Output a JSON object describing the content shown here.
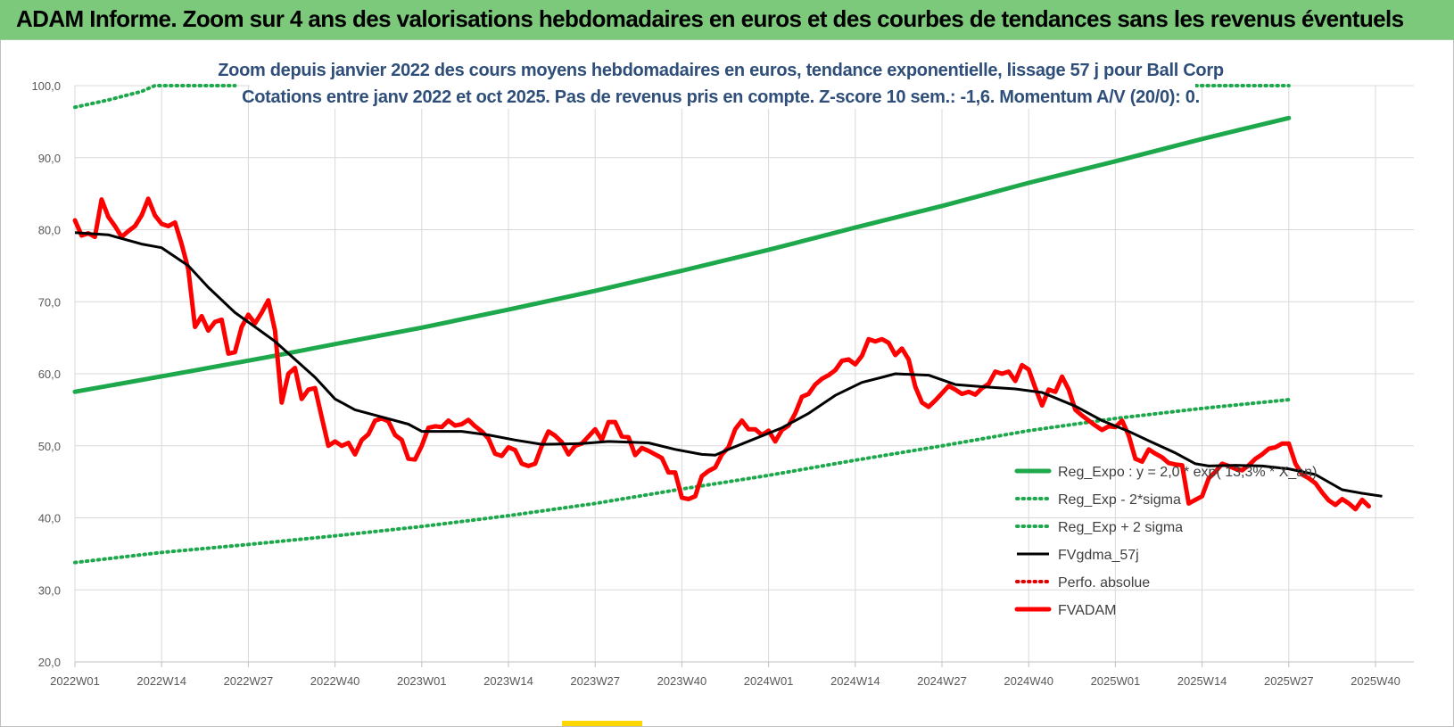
{
  "header": {
    "title": "ADAM Informe. Zoom sur 4 ans des valorisations hebdomadaires en euros et des courbes de tendances sans les revenus éventuels"
  },
  "chart_data": {
    "type": "line",
    "title_line1": "Zoom depuis janvier 2022 des cours moyens hebdomadaires en euros, tendance exponentielle, lissage 57 j pour Ball Corp",
    "title_line2": "Cotations entre janv 2022 et oct 2025. Pas de revenus pris en compte. Z-score 10 sem.: -1,6.  Momentum A/V (20/0): 0.",
    "xlabel": "",
    "ylabel": "",
    "ylim": [
      20,
      100
    ],
    "y_ticks": [
      "20,0",
      "30,0",
      "40,0",
      "50,0",
      "60,0",
      "70,0",
      "80,0",
      "90,0",
      "100,0"
    ],
    "x_ticks": [
      "2022W01",
      "2022W14",
      "2022W27",
      "2022W40",
      "2023W01",
      "2023W14",
      "2023W27",
      "2023W40",
      "2024W01",
      "2024W14",
      "2024W27",
      "2024W40",
      "2025W01",
      "2025W14",
      "2025W27",
      "2025W40"
    ],
    "grid": true,
    "legend_position": "bottom-right",
    "colors": {
      "trend": "#1ea84c",
      "bands": "#1ea84c",
      "smooth": "#000000",
      "perfo": "#e00000",
      "adam": "#ff0000"
    },
    "series": [
      {
        "name": "Reg_Expo : y = 2,0 * exp( 13,3% * X_an)",
        "style": "solid-thick",
        "color": "#1ea84c",
        "points": [
          [
            0,
            57.5
          ],
          [
            17,
            60.3
          ],
          [
            30,
            62.5
          ],
          [
            40,
            64.3
          ],
          [
            52,
            66.4
          ],
          [
            65,
            68.9
          ],
          [
            78,
            71.5
          ],
          [
            91,
            74.3
          ],
          [
            104,
            77.2
          ],
          [
            117,
            80.3
          ],
          [
            130,
            83.3
          ],
          [
            143,
            86.5
          ],
          [
            156,
            89.5
          ],
          [
            169,
            92.6
          ],
          [
            182,
            95.5
          ]
        ]
      },
      {
        "name": "Reg_Exp - 2*sigma",
        "style": "dotted",
        "color": "#1ea84c",
        "points": [
          [
            0,
            33.8
          ],
          [
            13,
            35.2
          ],
          [
            26,
            36.3
          ],
          [
            39,
            37.5
          ],
          [
            52,
            38.8
          ],
          [
            65,
            40.3
          ],
          [
            78,
            42.0
          ],
          [
            91,
            44.0
          ],
          [
            104,
            45.9
          ],
          [
            117,
            48.0
          ],
          [
            130,
            50.0
          ],
          [
            143,
            52.1
          ],
          [
            156,
            53.8
          ],
          [
            169,
            55.2
          ],
          [
            182,
            56.4
          ]
        ]
      },
      {
        "name": "Reg_Exp + 2 sigma",
        "style": "dotted",
        "color": "#1ea84c",
        "points": [
          [
            0,
            97.0
          ],
          [
            5,
            98.0
          ],
          [
            10,
            99.2
          ],
          [
            12,
            100.0
          ],
          [
            24,
            100.0
          ]
        ],
        "points_b": [
          [
            155,
            100.0
          ],
          [
            182,
            100.0
          ]
        ]
      },
      {
        "name": "FVgdma_57j",
        "style": "solid",
        "color": "#000000",
        "points": [
          [
            0,
            79.6
          ],
          [
            5,
            79.3
          ],
          [
            10,
            78.0
          ],
          [
            13,
            77.5
          ],
          [
            17,
            75.0
          ],
          [
            20,
            72.0
          ],
          [
            24,
            68.5
          ],
          [
            27,
            66.5
          ],
          [
            30,
            64.5
          ],
          [
            33,
            62.0
          ],
          [
            36,
            59.5
          ],
          [
            39,
            56.5
          ],
          [
            42,
            55.0
          ],
          [
            46,
            54.0
          ],
          [
            50,
            53.0
          ],
          [
            52,
            52.0
          ],
          [
            58,
            52.0
          ],
          [
            62,
            51.5
          ],
          [
            66,
            50.8
          ],
          [
            70,
            50.2
          ],
          [
            76,
            50.3
          ],
          [
            80,
            50.6
          ],
          [
            86,
            50.4
          ],
          [
            90,
            49.5
          ],
          [
            94,
            48.8
          ],
          [
            96,
            48.7
          ],
          [
            98,
            49.5
          ],
          [
            102,
            51.0
          ],
          [
            106,
            52.5
          ],
          [
            110,
            54.5
          ],
          [
            114,
            57.0
          ],
          [
            118,
            58.8
          ],
          [
            121,
            59.5
          ],
          [
            123,
            60.0
          ],
          [
            128,
            59.8
          ],
          [
            132,
            58.5
          ],
          [
            136,
            58.2
          ],
          [
            141,
            57.9
          ],
          [
            145,
            57.4
          ],
          [
            150,
            55.5
          ],
          [
            154,
            53.5
          ],
          [
            158,
            52.0
          ],
          [
            161,
            50.7
          ],
          [
            165,
            49.0
          ],
          [
            168,
            47.5
          ],
          [
            170,
            47.2
          ],
          [
            174,
            47.3
          ],
          [
            178,
            47.2
          ],
          [
            182,
            46.8
          ],
          [
            186,
            46.0
          ],
          [
            190,
            43.9
          ],
          [
            193,
            43.4
          ],
          [
            196,
            43.0
          ]
        ]
      },
      {
        "name": "Perfo. absolue",
        "style": "dotted",
        "color": "#e00000",
        "points": []
      },
      {
        "name": "FVADAM",
        "style": "solid-thick",
        "color": "#ff0000",
        "points": [
          [
            0,
            81.3
          ],
          [
            1,
            79.2
          ],
          [
            2,
            79.5
          ],
          [
            3,
            79.0
          ],
          [
            4,
            84.2
          ],
          [
            5,
            81.8
          ],
          [
            6,
            80.5
          ],
          [
            7,
            79.0
          ],
          [
            8,
            79.8
          ],
          [
            9,
            80.5
          ],
          [
            10,
            82.0
          ],
          [
            11,
            84.3
          ],
          [
            12,
            82.0
          ],
          [
            13,
            80.8
          ],
          [
            14,
            80.5
          ],
          [
            15,
            81.0
          ],
          [
            16,
            78.0
          ],
          [
            17,
            74.5
          ],
          [
            18,
            66.5
          ],
          [
            19,
            68.0
          ],
          [
            20,
            66.0
          ],
          [
            21,
            67.2
          ],
          [
            22,
            67.5
          ],
          [
            23,
            62.8
          ],
          [
            24,
            63.0
          ],
          [
            25,
            66.5
          ],
          [
            26,
            68.2
          ],
          [
            27,
            67.0
          ],
          [
            28,
            68.5
          ],
          [
            29,
            70.2
          ],
          [
            30,
            66.0
          ],
          [
            31,
            56.0
          ],
          [
            32,
            60.0
          ],
          [
            33,
            60.8
          ],
          [
            34,
            56.5
          ],
          [
            35,
            57.8
          ],
          [
            36,
            58.0
          ],
          [
            37,
            54.0
          ],
          [
            38,
            50.0
          ],
          [
            39,
            50.6
          ],
          [
            40,
            50.0
          ],
          [
            41,
            50.4
          ],
          [
            42,
            48.8
          ],
          [
            43,
            50.8
          ],
          [
            44,
            51.6
          ],
          [
            45,
            53.5
          ],
          [
            46,
            53.8
          ],
          [
            47,
            53.4
          ],
          [
            48,
            51.5
          ],
          [
            49,
            50.8
          ],
          [
            50,
            48.2
          ],
          [
            51,
            48.1
          ],
          [
            52,
            50.0
          ],
          [
            53,
            52.5
          ],
          [
            54,
            52.7
          ],
          [
            55,
            52.6
          ],
          [
            56,
            53.5
          ],
          [
            57,
            52.8
          ],
          [
            58,
            53.0
          ],
          [
            59,
            53.6
          ],
          [
            60,
            52.7
          ],
          [
            61,
            52.0
          ],
          [
            62,
            51.0
          ],
          [
            63,
            48.9
          ],
          [
            64,
            48.6
          ],
          [
            65,
            49.8
          ],
          [
            66,
            49.4
          ],
          [
            67,
            47.5
          ],
          [
            68,
            47.2
          ],
          [
            69,
            47.5
          ],
          [
            70,
            50.0
          ],
          [
            71,
            52.0
          ],
          [
            72,
            51.4
          ],
          [
            73,
            50.5
          ],
          [
            74,
            48.8
          ],
          [
            75,
            50.0
          ],
          [
            76,
            50.3
          ],
          [
            77,
            51.3
          ],
          [
            78,
            52.3
          ],
          [
            79,
            50.8
          ],
          [
            80,
            53.3
          ],
          [
            81,
            53.3
          ],
          [
            82,
            51.3
          ],
          [
            83,
            51.2
          ],
          [
            84,
            48.7
          ],
          [
            85,
            49.7
          ],
          [
            86,
            49.3
          ],
          [
            87,
            48.8
          ],
          [
            88,
            48.3
          ],
          [
            89,
            46.3
          ],
          [
            90,
            46.3
          ],
          [
            91,
            42.8
          ],
          [
            92,
            42.6
          ],
          [
            93,
            43.0
          ],
          [
            94,
            45.8
          ],
          [
            95,
            46.5
          ],
          [
            96,
            47.0
          ],
          [
            97,
            48.8
          ],
          [
            98,
            49.8
          ],
          [
            99,
            52.3
          ],
          [
            100,
            53.5
          ],
          [
            101,
            52.3
          ],
          [
            102,
            52.3
          ],
          [
            103,
            51.5
          ],
          [
            104,
            52.1
          ],
          [
            105,
            50.6
          ],
          [
            106,
            52.2
          ],
          [
            107,
            52.8
          ],
          [
            108,
            54.5
          ],
          [
            109,
            56.8
          ],
          [
            110,
            57.2
          ],
          [
            111,
            58.5
          ],
          [
            112,
            59.3
          ],
          [
            113,
            59.8
          ],
          [
            114,
            60.5
          ],
          [
            115,
            61.8
          ],
          [
            116,
            62.0
          ],
          [
            117,
            61.3
          ],
          [
            118,
            62.5
          ],
          [
            119,
            64.8
          ],
          [
            120,
            64.5
          ],
          [
            121,
            64.8
          ],
          [
            122,
            64.3
          ],
          [
            123,
            62.6
          ],
          [
            124,
            63.5
          ],
          [
            125,
            62.0
          ],
          [
            126,
            58.2
          ],
          [
            127,
            56.0
          ],
          [
            128,
            55.4
          ],
          [
            129,
            56.3
          ],
          [
            130,
            57.3
          ],
          [
            131,
            58.3
          ],
          [
            132,
            57.8
          ],
          [
            133,
            57.2
          ],
          [
            134,
            57.5
          ],
          [
            135,
            57.1
          ],
          [
            136,
            58.0
          ],
          [
            137,
            58.6
          ],
          [
            138,
            60.3
          ],
          [
            139,
            60.0
          ],
          [
            140,
            60.3
          ],
          [
            141,
            59.0
          ],
          [
            142,
            61.2
          ],
          [
            143,
            60.6
          ],
          [
            144,
            58.0
          ],
          [
            145,
            55.6
          ],
          [
            146,
            57.8
          ],
          [
            147,
            57.5
          ],
          [
            148,
            59.6
          ],
          [
            149,
            57.8
          ],
          [
            150,
            55.0
          ],
          [
            151,
            54.2
          ],
          [
            152,
            53.5
          ],
          [
            153,
            52.8
          ],
          [
            154,
            52.2
          ],
          [
            155,
            52.7
          ],
          [
            156,
            52.6
          ],
          [
            157,
            53.5
          ],
          [
            158,
            51.4
          ],
          [
            159,
            48.2
          ],
          [
            160,
            47.8
          ],
          [
            161,
            49.5
          ],
          [
            162,
            48.9
          ],
          [
            163,
            48.4
          ],
          [
            164,
            47.6
          ],
          [
            165,
            47.4
          ],
          [
            166,
            47.3
          ],
          [
            167,
            42.0
          ],
          [
            168,
            42.5
          ],
          [
            169,
            43.0
          ],
          [
            170,
            45.5
          ],
          [
            171,
            46.4
          ],
          [
            172,
            47.5
          ],
          [
            173,
            47.2
          ],
          [
            174,
            46.8
          ],
          [
            175,
            46.6
          ],
          [
            176,
            47.3
          ],
          [
            177,
            48.2
          ],
          [
            178,
            48.8
          ],
          [
            179,
            49.6
          ],
          [
            180,
            49.8
          ],
          [
            181,
            50.3
          ],
          [
            182,
            50.3
          ],
          [
            183,
            47.5
          ],
          [
            184,
            46.0
          ],
          [
            185,
            45.5
          ],
          [
            186,
            44.8
          ],
          [
            187,
            43.5
          ],
          [
            188,
            42.4
          ],
          [
            189,
            41.8
          ],
          [
            190,
            42.6
          ],
          [
            191,
            42.0
          ],
          [
            192,
            41.2
          ],
          [
            193,
            42.5
          ],
          [
            194,
            41.6
          ]
        ]
      }
    ]
  }
}
